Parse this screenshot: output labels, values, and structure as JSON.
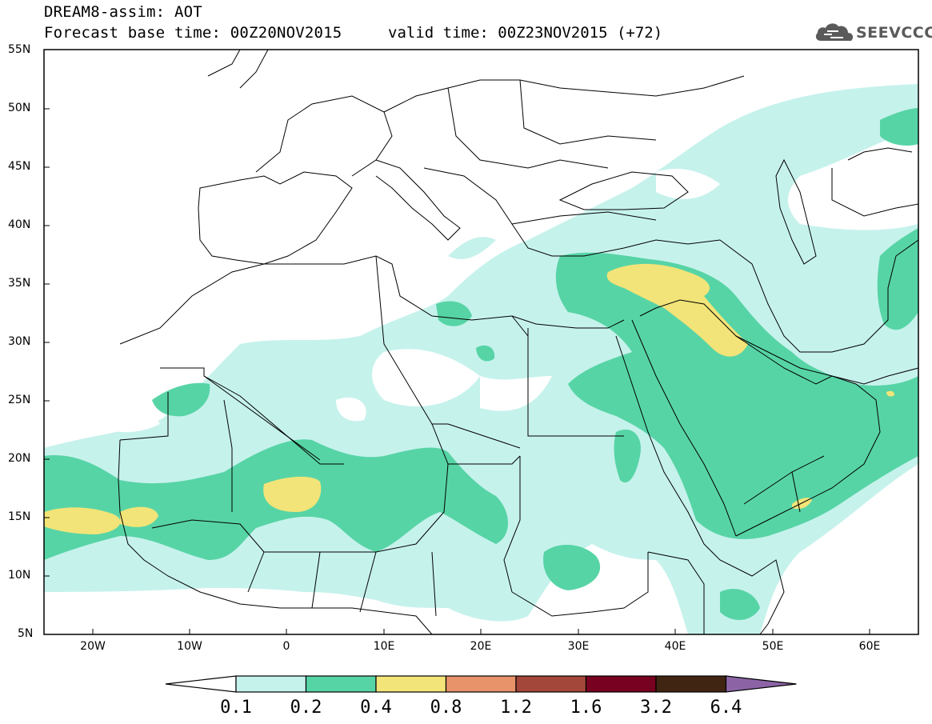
{
  "header": {
    "line1": "DREAM8-assim: AOT",
    "line2": "Forecast base time: 00Z20NOV2015",
    "valid": "valid time: 00Z23NOV2015 (+72)",
    "logo_text": "SEEVCCC",
    "logo_icon": "cloud-logo-icon"
  },
  "map": {
    "lat_labels": [
      "55N",
      "50N",
      "45N",
      "40N",
      "35N",
      "30N",
      "25N",
      "20N",
      "15N",
      "10N",
      "5N"
    ],
    "lon_labels": [
      "20W",
      "10W",
      "0",
      "10E",
      "20E",
      "30E",
      "40E",
      "50E",
      "60E"
    ],
    "lat_range": [
      5,
      55
    ],
    "lon_range": [
      -25,
      65
    ]
  },
  "colorbar": {
    "levels": [
      "0.1",
      "0.2",
      "0.4",
      "0.8",
      "1.2",
      "1.6",
      "3.2",
      "6.4"
    ],
    "colors": [
      "#ffffff",
      "#c6f2ec",
      "#57d4a6",
      "#f2e478",
      "#e8936a",
      "#a3473a",
      "#780020",
      "#402612",
      "#8c64a6"
    ]
  }
}
